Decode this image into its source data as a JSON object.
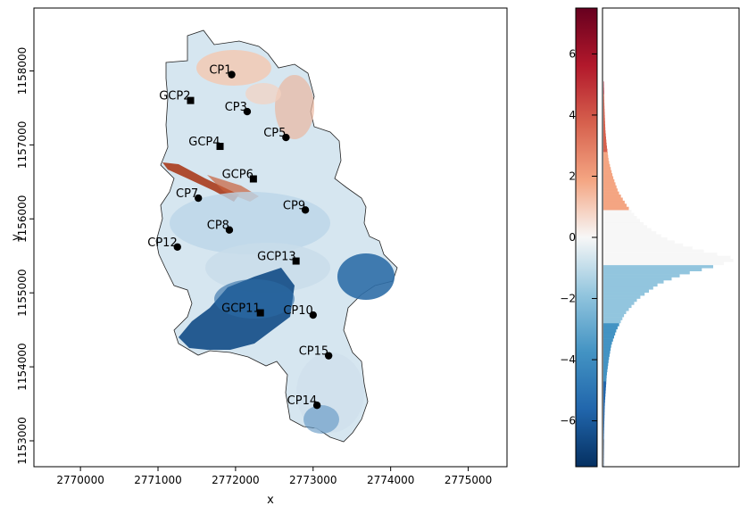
{
  "chart_data": [
    {
      "type": "scatter",
      "description_role": "map",
      "title": "",
      "xlabel": "x",
      "ylabel": "y",
      "xlim": [
        2769400,
        2775500
      ],
      "ylim": [
        1152650,
        1158850
      ],
      "xticks": [
        2770000,
        2771000,
        2772000,
        2773000,
        2774000,
        2775000
      ],
      "yticks": [
        1153000,
        1154000,
        1155000,
        1156000,
        1157000,
        1158000
      ],
      "xtick_labels": [
        "2770000",
        "2771000",
        "2772000",
        "2773000",
        "2774000",
        "2775000"
      ],
      "ytick_labels": [
        "1153000",
        "1154000",
        "1155000",
        "1156000",
        "1157000",
        "1158000"
      ],
      "colormap": "red-white-blue diverging",
      "points": [
        {
          "label": "CP1",
          "kind": "checkpoint",
          "x": 2771950,
          "y": 1157950
        },
        {
          "label": "GCP2",
          "kind": "gcp",
          "x": 2771420,
          "y": 1157600
        },
        {
          "label": "CP3",
          "kind": "checkpoint",
          "x": 2772150,
          "y": 1157450
        },
        {
          "label": "GCP4",
          "kind": "gcp",
          "x": 2771800,
          "y": 1156980
        },
        {
          "label": "CP5",
          "kind": "checkpoint",
          "x": 2772650,
          "y": 1157100
        },
        {
          "label": "GCP6",
          "kind": "gcp",
          "x": 2772230,
          "y": 1156540
        },
        {
          "label": "CP7",
          "kind": "checkpoint",
          "x": 2771520,
          "y": 1156280
        },
        {
          "label": "CP8",
          "kind": "checkpoint",
          "x": 2771920,
          "y": 1155850
        },
        {
          "label": "CP9",
          "kind": "checkpoint",
          "x": 2772900,
          "y": 1156120
        },
        {
          "label": "CP10",
          "kind": "checkpoint",
          "x": 2773000,
          "y": 1154700
        },
        {
          "label": "GCP11",
          "kind": "gcp",
          "x": 2772320,
          "y": 1154730
        },
        {
          "label": "CP12",
          "kind": "checkpoint",
          "x": 2771250,
          "y": 1155620
        },
        {
          "label": "GCP13",
          "kind": "gcp",
          "x": 2772780,
          "y": 1155430
        },
        {
          "label": "CP14",
          "kind": "checkpoint",
          "x": 2773050,
          "y": 1153480
        },
        {
          "label": "CP15",
          "kind": "checkpoint",
          "x": 2773200,
          "y": 1154150
        }
      ]
    },
    {
      "type": "colorbar",
      "ylim": [
        -7.5,
        7.5
      ],
      "ticks": [
        -6,
        -4,
        -2,
        0,
        2,
        4,
        6
      ],
      "tick_labels": [
        "−6",
        "−4",
        "−2",
        "0",
        "2",
        "4",
        "6"
      ],
      "colors": [
        "#053061",
        "#2166ac",
        "#4393c3",
        "#92c5de",
        "#f7f7f7",
        "#f4a582",
        "#d6604d",
        "#b2182b",
        "#67001f"
      ]
    },
    {
      "type": "area",
      "orientation": "horizontal histogram",
      "ylim": [
        -7.5,
        7.5
      ],
      "y": [
        -7.5,
        -6.5,
        -5.5,
        -4.5,
        -4.0,
        -3.5,
        -3.0,
        -2.5,
        -2.0,
        -1.5,
        -1.2,
        -1.0,
        -0.8,
        -0.7,
        -0.6,
        -0.4,
        -0.2,
        0.0,
        0.3,
        0.6,
        1.0,
        1.5,
        2.0,
        2.5,
        3.0,
        3.5,
        4.0,
        4.5,
        5.0
      ],
      "density": [
        0.002,
        0.004,
        0.01,
        0.025,
        0.04,
        0.06,
        0.1,
        0.16,
        0.26,
        0.42,
        0.6,
        0.78,
        0.94,
        1.0,
        0.9,
        0.7,
        0.56,
        0.45,
        0.34,
        0.26,
        0.18,
        0.11,
        0.07,
        0.04,
        0.025,
        0.015,
        0.01,
        0.006,
        0.003
      ]
    }
  ]
}
